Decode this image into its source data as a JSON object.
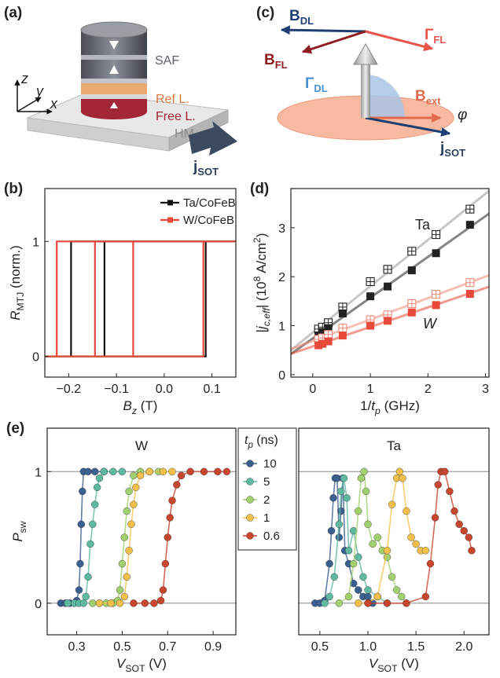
{
  "diagram_a": {
    "label": "(a)",
    "layers": [
      "SAF",
      "Ref L.",
      "Free L.",
      "HM"
    ],
    "axes": [
      "z",
      "y",
      "x"
    ],
    "current": [
      "j",
      "SOT"
    ]
  },
  "diagram_c": {
    "label": "(c)",
    "B_DL": [
      "B",
      "DL"
    ],
    "B_FL": [
      "B",
      "FL"
    ],
    "Gamma_FL": [
      "Γ",
      "FL"
    ],
    "Gamma_DL": [
      "Γ",
      "DL"
    ],
    "B_ext": [
      "B",
      "ext"
    ],
    "angle": "φ",
    "current": [
      "j",
      "SOT"
    ]
  },
  "chart_data": [
    {
      "type": "line",
      "panel": "(b)",
      "xlabel": [
        {
          "text": "B",
          "style": "italic"
        },
        {
          "text": "z",
          "style": "italic-sub"
        },
        {
          "text": " (T)"
        }
      ],
      "ylabel": [
        {
          "text": "R",
          "style": "italic"
        },
        {
          "text": "MTJ",
          "style": "sub"
        },
        {
          "text": " (norm.)"
        }
      ],
      "xlim": [
        -0.25,
        0.15
      ],
      "ylim": [
        -0.18,
        1.46
      ],
      "xticks": [
        {
          "value": -0.2,
          "label": "−0.2"
        },
        {
          "value": -0.1,
          "label": "−0.1"
        },
        {
          "value": 0,
          "label": "0.0"
        },
        0.1
      ],
      "yticks": [
        0,
        1
      ],
      "legend": "upper right",
      "series": [
        {
          "name": "Ta/CoFeB",
          "color": "#111111",
          "x": [
            -0.25,
            0.087,
            0.087,
            0.15,
            -0.195,
            -0.195,
            -0.25,
            null,
            -0.195,
            -0.125,
            -0.125,
            -0.1
          ],
          "values": [
            0,
            0,
            1,
            1,
            1,
            0,
            0,
            null,
            0,
            0,
            1,
            1
          ]
        },
        {
          "name": "W/CoFeB",
          "color": "#e8493a",
          "x": [
            -0.25,
            0.082,
            0.082,
            0.15,
            -0.225,
            -0.225,
            -0.25,
            null,
            -0.225,
            -0.145,
            -0.145,
            -0.065,
            -0.065,
            -0.05
          ],
          "values": [
            0,
            0,
            1,
            1,
            1,
            0,
            0,
            null,
            0,
            0,
            1,
            1,
            0,
            0
          ]
        }
      ]
    },
    {
      "type": "scatter",
      "panel": "(d)",
      "xlabel": [
        {
          "text": "1/"
        },
        {
          "text": "t",
          "style": "italic"
        },
        {
          "text": "p",
          "style": "italic-sub"
        },
        {
          "text": " (GHz)"
        }
      ],
      "ylabel": [
        {
          "text": "|"
        },
        {
          "text": "j",
          "style": "italic"
        },
        {
          "text": "c,eff",
          "style": "italic-sub"
        },
        {
          "text": "| (10"
        },
        {
          "text": "8",
          "style": "sup"
        },
        {
          "text": " A/cm"
        },
        {
          "text": "2",
          "style": "sup"
        },
        {
          "text": ")"
        }
      ],
      "xlim": [
        -0.38,
        3.06
      ],
      "ylim": [
        -0.05,
        3.8
      ],
      "xticks": [
        0,
        1,
        2,
        3
      ],
      "yticks": [
        0,
        1,
        2,
        3
      ],
      "fit": true,
      "annotations": [
        [
          {
            "text": "Ta"
          }
        ],
        [
          {
            "text": "W",
            "style": "italic"
          }
        ]
      ],
      "series": [
        {
          "color": "#9a9a9a",
          "marker": "crossed-square",
          "x": [
            0.1,
            0.17,
            0.27,
            0.52,
            1.0,
            1.3,
            1.72,
            2.14,
            2.73
          ],
          "values": [
            0.93,
            0.97,
            1.06,
            1.38,
            1.9,
            2.15,
            2.52,
            2.86,
            3.38
          ]
        },
        {
          "color": "#222222",
          "marker": "square",
          "x": [
            0.1,
            0.17,
            0.27,
            0.52,
            1.0,
            1.3,
            1.72,
            2.14,
            2.73
          ],
          "values": [
            0.8,
            0.87,
            0.95,
            1.25,
            1.6,
            1.8,
            2.13,
            2.48,
            3.06
          ]
        },
        {
          "color": "#f08a7a",
          "marker": "crossed-square",
          "x": [
            0.1,
            0.17,
            0.27,
            0.52,
            1.0,
            1.3,
            1.72,
            2.14,
            2.73
          ],
          "values": [
            0.72,
            0.75,
            0.82,
            0.95,
            1.12,
            1.22,
            1.45,
            1.64,
            1.88
          ]
        },
        {
          "color": "#e8493a",
          "marker": "square",
          "x": [
            0.1,
            0.17,
            0.27,
            0.52,
            1.0,
            1.3,
            1.72,
            2.14,
            2.73
          ],
          "values": [
            0.6,
            0.63,
            0.68,
            0.8,
            1.0,
            1.1,
            1.27,
            1.42,
            1.65
          ]
        }
      ]
    },
    {
      "type": "line",
      "markers": "circle",
      "panel": "(e)",
      "title": "W",
      "xlabel": [
        {
          "text": "V",
          "style": "italic"
        },
        {
          "text": "SOT",
          "style": "sub"
        },
        {
          "text": " (V)"
        }
      ],
      "ylabel": [
        {
          "text": "P",
          "style": "italic"
        },
        {
          "text": "sw",
          "style": "sub"
        }
      ],
      "xlim": [
        0.17,
        1.0
      ],
      "ylim": [
        -0.24,
        1.33
      ],
      "xticks": [
        0.3,
        0.5,
        0.7,
        0.9
      ],
      "yticks": [
        0,
        1
      ],
      "grid": true,
      "legend": "outside right",
      "legend_title": [
        {
          "text": "t",
          "style": "italic"
        },
        {
          "text": "p",
          "style": "italic-sub"
        },
        {
          "text": " (ns)"
        }
      ],
      "series": [
        {
          "name": "10",
          "color": "#3b5f8e",
          "x": [
            0.23,
            0.25,
            0.27,
            0.29,
            0.3,
            0.31,
            0.315,
            0.32,
            0.325,
            0.33,
            0.35,
            0.38,
            0.42
          ],
          "values": [
            0,
            0,
            0,
            0,
            0.02,
            0.1,
            0.3,
            0.6,
            0.85,
            1,
            1,
            1,
            1
          ]
        },
        {
          "name": "5",
          "color": "#5fb9a0",
          "x": [
            0.26,
            0.29,
            0.31,
            0.33,
            0.34,
            0.35,
            0.36,
            0.37,
            0.38,
            0.39,
            0.4,
            0.42,
            0.46,
            0.5
          ],
          "values": [
            0,
            0,
            0,
            0,
            0.05,
            0.2,
            0.45,
            0.6,
            0.75,
            0.88,
            0.95,
            1,
            1,
            1
          ]
        },
        {
          "name": "2",
          "color": "#a3d06e",
          "x": [
            0.37,
            0.4,
            0.43,
            0.46,
            0.48,
            0.49,
            0.5,
            0.51,
            0.52,
            0.53,
            0.55,
            0.58,
            0.62,
            0.66
          ],
          "values": [
            0,
            0,
            0,
            0,
            0.02,
            0.1,
            0.3,
            0.5,
            0.7,
            0.85,
            0.97,
            1,
            1,
            1
          ]
        },
        {
          "name": "1",
          "color": "#f2c04a",
          "x": [
            0.4,
            0.45,
            0.49,
            0.51,
            0.52,
            0.53,
            0.54,
            0.55,
            0.56,
            0.58,
            0.62,
            0.68,
            0.72
          ],
          "values": [
            0,
            0,
            0,
            0.05,
            0.2,
            0.4,
            0.6,
            0.75,
            0.88,
            0.97,
            1,
            1,
            1
          ]
        },
        {
          "name": "0.6",
          "color": "#c8452e",
          "x": [
            0.55,
            0.6,
            0.64,
            0.67,
            0.68,
            0.69,
            0.7,
            0.71,
            0.72,
            0.74,
            0.76,
            0.8,
            0.86,
            0.92,
            0.96
          ],
          "values": [
            0,
            0,
            0,
            0.02,
            0.1,
            0.3,
            0.5,
            0.65,
            0.78,
            0.9,
            0.97,
            1,
            1,
            1,
            1
          ]
        }
      ]
    },
    {
      "type": "line",
      "markers": "circle",
      "title": "Ta",
      "xlabel": [
        {
          "text": "V",
          "style": "italic"
        },
        {
          "text": "SOT",
          "style": "sub"
        },
        {
          "text": " (V)"
        }
      ],
      "xlim": [
        0.28,
        2.26
      ],
      "ylim": [
        -0.24,
        1.33
      ],
      "xticks": [
        0.5,
        {
          "value": 1,
          "label": "1.0"
        },
        1.5,
        {
          "value": 2,
          "label": "2.0"
        }
      ],
      "hlines": [
        0,
        1
      ],
      "series": [
        {
          "color": "#3b5f8e",
          "x": [
            0.45,
            0.5,
            0.55,
            0.6,
            0.62,
            0.64,
            0.66,
            0.68,
            0.7,
            0.72,
            0.74,
            0.76,
            0.8,
            0.85,
            0.9,
            0.95,
            1.0,
            1.05
          ],
          "values": [
            0,
            0,
            0.02,
            0.3,
            0.55,
            0.8,
            0.95,
            0.95,
            0.5,
            0.7,
            0.95,
            0.4,
            0.3,
            0.15,
            0.1,
            0.05,
            0.05,
            0
          ]
        },
        {
          "color": "#5fb9a0",
          "x": [
            0.55,
            0.6,
            0.65,
            0.7,
            0.72,
            0.75,
            0.78,
            0.8,
            0.85,
            0.9,
            0.95,
            1.0,
            1.1,
            1.2
          ],
          "values": [
            0,
            0.05,
            0.2,
            0.6,
            0.85,
            0.95,
            0.8,
            0.4,
            0.55,
            0.35,
            0.2,
            0.1,
            0.05,
            0
          ]
        },
        {
          "color": "#a3d06e",
          "x": [
            0.7,
            0.8,
            0.85,
            0.9,
            0.93,
            0.96,
            0.98,
            1.0,
            1.05,
            1.1,
            1.15,
            1.2,
            1.25,
            1.3,
            1.35,
            1.4
          ],
          "values": [
            0,
            0.05,
            0.3,
            0.7,
            0.95,
            1,
            0.85,
            0.6,
            0.45,
            0.5,
            0.4,
            0.35,
            0.2,
            0.1,
            0.05,
            0
          ]
        },
        {
          "color": "#f2c04a",
          "x": [
            0.9,
            1.0,
            1.1,
            1.2,
            1.25,
            1.3,
            1.33,
            1.36,
            1.4,
            1.45,
            1.5,
            1.55,
            1.6
          ],
          "values": [
            0,
            0,
            0.05,
            0.4,
            0.75,
            0.95,
            1,
            0.95,
            0.7,
            0.5,
            0.45,
            0.4,
            0.4
          ]
        },
        {
          "color": "#c8452e",
          "x": [
            1.0,
            1.2,
            1.4,
            1.6,
            1.65,
            1.7,
            1.73,
            1.76,
            1.8,
            1.85,
            1.9,
            1.95,
            2.0,
            2.05,
            2.08
          ],
          "values": [
            0,
            0,
            0,
            0.05,
            0.3,
            0.65,
            0.9,
            1,
            1,
            0.85,
            0.7,
            0.6,
            0.55,
            0.5,
            0.4
          ]
        }
      ]
    }
  ]
}
